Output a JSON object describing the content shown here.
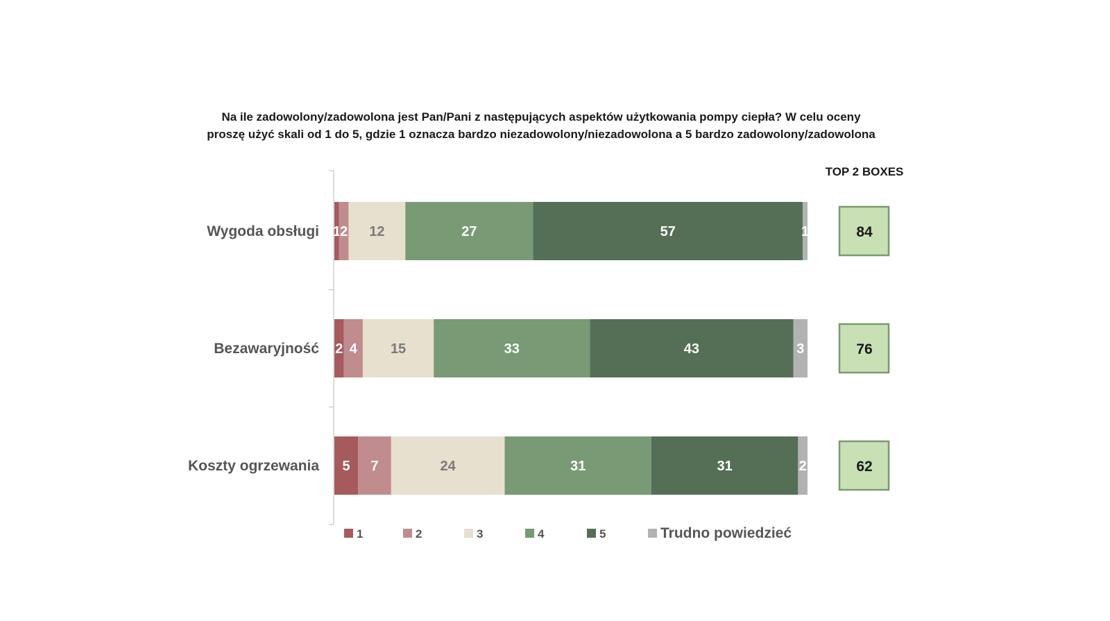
{
  "title_lines": [
    "Na ile zadowolony/zadowolona jest Pan/Pani z następujących aspektów użytkowania pompy ciepła? W celu oceny",
    "proszę użyć skali od 1 do 5, gdzie 1 oznacza bardzo niezadowolony/niezadowolona a 5 bardzo zadowolony/zadowolona"
  ],
  "top2_header": "TOP 2 BOXES",
  "chart_data": {
    "type": "bar",
    "orientation": "horizontal",
    "stacked": true,
    "categories": [
      "Wygoda obsługi",
      "Bezawaryjność",
      "Koszty ogrzewania"
    ],
    "series": [
      {
        "name": "1",
        "color": "#a65a5c",
        "label_color": "#ffffff",
        "values": [
          1,
          2,
          5
        ]
      },
      {
        "name": "2",
        "color": "#c18c8d",
        "label_color": "#ffffff",
        "values": [
          2,
          4,
          7
        ]
      },
      {
        "name": "3",
        "color": "#e8e0cf",
        "label_color": "#7a7a7a",
        "values": [
          12,
          15,
          24
        ]
      },
      {
        "name": "4",
        "color": "#789a74",
        "label_color": "#ffffff",
        "values": [
          27,
          33,
          31
        ]
      },
      {
        "name": "5",
        "color": "#556f56",
        "label_color": "#ffffff",
        "values": [
          57,
          43,
          31
        ]
      },
      {
        "name": "Trudno powiedzieć",
        "color": "#b2b2b2",
        "label_color": "#ffffff",
        "values": [
          1,
          3,
          2
        ]
      }
    ],
    "top2_boxes": [
      84,
      76,
      62
    ],
    "top2_box_color": "#c8e0b4",
    "top2_border_color": "#7a9a70",
    "legend_position": "bottom"
  }
}
